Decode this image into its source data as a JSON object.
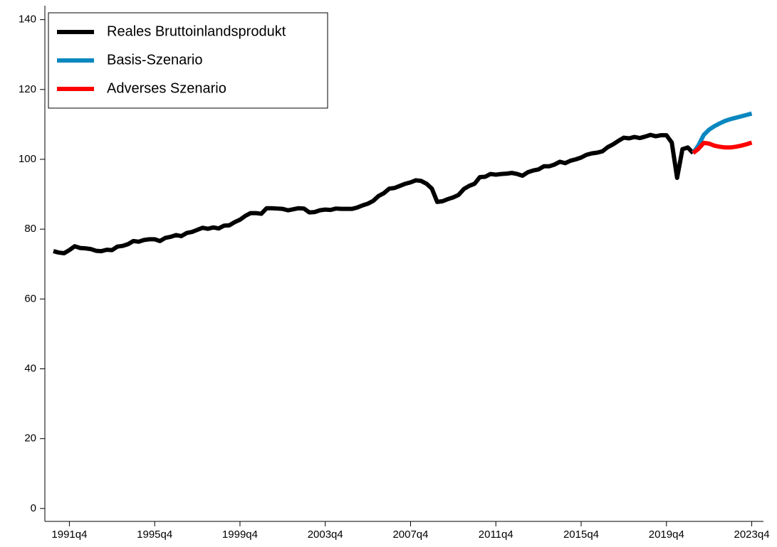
{
  "chart_data": {
    "type": "line",
    "xlim": [
      1990.6,
      2024.3
    ],
    "ylim": [
      -3.7,
      144
    ],
    "yticks": [
      0,
      20,
      40,
      60,
      80,
      100,
      120,
      140
    ],
    "xticks": [
      {
        "value": 1991.75,
        "label": "1991q4"
      },
      {
        "value": 1995.75,
        "label": "1995q4"
      },
      {
        "value": 1999.75,
        "label": "1999q4"
      },
      {
        "value": 2003.75,
        "label": "2003q4"
      },
      {
        "value": 2007.75,
        "label": "2007q4"
      },
      {
        "value": 2011.75,
        "label": "2011q4"
      },
      {
        "value": 2015.75,
        "label": "2015q4"
      },
      {
        "value": 2019.75,
        "label": "2019q4"
      },
      {
        "value": 2023.75,
        "label": "2023q4"
      }
    ],
    "grid": false,
    "legend": "upper-left",
    "series": [
      {
        "name": "Reales Bruttoinlandsprodukt",
        "color": "#000000",
        "x": [
          1991,
          1991.25,
          1991.5,
          1991.75,
          1992,
          1992.25,
          1992.5,
          1992.75,
          1993,
          1993.25,
          1993.5,
          1993.75,
          1994,
          1994.25,
          1994.5,
          1994.75,
          1995,
          1995.25,
          1995.5,
          1995.75,
          1996,
          1996.25,
          1996.5,
          1996.75,
          1997,
          1997.25,
          1997.5,
          1997.75,
          1998,
          1998.25,
          1998.5,
          1998.75,
          1999,
          1999.25,
          1999.5,
          1999.75,
          2000,
          2000.25,
          2000.5,
          2000.75,
          2001,
          2001.25,
          2001.5,
          2001.75,
          2002,
          2002.25,
          2002.5,
          2002.75,
          2003,
          2003.25,
          2003.5,
          2003.75,
          2004,
          2004.25,
          2004.5,
          2004.75,
          2005,
          2005.25,
          2005.5,
          2005.75,
          2006,
          2006.25,
          2006.5,
          2006.75,
          2007,
          2007.25,
          2007.5,
          2007.75,
          2008,
          2008.25,
          2008.5,
          2008.75,
          2009,
          2009.25,
          2009.5,
          2009.75,
          2010,
          2010.25,
          2010.5,
          2010.75,
          2011,
          2011.25,
          2011.5,
          2011.75,
          2012,
          2012.25,
          2012.5,
          2012.75,
          2013,
          2013.25,
          2013.5,
          2013.75,
          2014,
          2014.25,
          2014.5,
          2014.75,
          2015,
          2015.25,
          2015.5,
          2015.75,
          2016,
          2016.25,
          2016.5,
          2016.75,
          2017,
          2017.25,
          2017.5,
          2017.75,
          2018,
          2018.25,
          2018.5,
          2018.75,
          2019,
          2019.25,
          2019.5,
          2019.75,
          2020,
          2020.25,
          2020.5,
          2020.75,
          2021
        ],
        "values": [
          73.7,
          73.3,
          73.1,
          74.0,
          75.1,
          74.6,
          74.5,
          74.3,
          73.8,
          73.7,
          74.1,
          74.0,
          75.0,
          75.2,
          75.7,
          76.6,
          76.4,
          76.9,
          77.1,
          77.1,
          76.6,
          77.5,
          77.8,
          78.3,
          78.0,
          78.9,
          79.2,
          79.8,
          80.4,
          80.1,
          80.5,
          80.2,
          81.0,
          81.1,
          82.0,
          82.7,
          83.8,
          84.6,
          84.6,
          84.4,
          86.0,
          86.0,
          85.9,
          85.8,
          85.4,
          85.7,
          86.0,
          85.9,
          84.8,
          84.9,
          85.4,
          85.6,
          85.5,
          85.9,
          85.8,
          85.8,
          85.8,
          86.2,
          86.8,
          87.3,
          88.1,
          89.5,
          90.3,
          91.6,
          91.8,
          92.4,
          93.0,
          93.4,
          94.0,
          93.8,
          93.0,
          91.6,
          87.8,
          88.0,
          88.6,
          89.1,
          89.8,
          91.5,
          92.4,
          93.0,
          94.9,
          95.0,
          95.8,
          95.6,
          95.8,
          95.9,
          96.1,
          95.8,
          95.3,
          96.3,
          96.8,
          97.1,
          98.0,
          98.0,
          98.5,
          99.3,
          98.9,
          99.6,
          100.0,
          100.5,
          101.3,
          101.7,
          101.9,
          102.3,
          103.5,
          104.3,
          105.3,
          106.2,
          106.0,
          106.4,
          106.1,
          106.5,
          107.0,
          106.6,
          106.9,
          106.9,
          104.8,
          94.7,
          102.9,
          103.4,
          101.8
        ]
      },
      {
        "name": "Basis-Szenario",
        "color": "#0a87bf",
        "x": [
          2021,
          2021.25,
          2021.5,
          2021.75,
          2022,
          2022.25,
          2022.5,
          2022.75,
          2023,
          2023.25,
          2023.5,
          2023.75
        ],
        "values": [
          101.8,
          104.0,
          107.0,
          108.5,
          109.5,
          110.3,
          111.0,
          111.5,
          111.9,
          112.3,
          112.7,
          113.1
        ]
      },
      {
        "name": "Adverses Szenario",
        "color": "#ff0000",
        "x": [
          2021,
          2021.25,
          2021.5,
          2021.75,
          2022,
          2022.25,
          2022.5,
          2022.75,
          2023,
          2023.25,
          2023.5,
          2023.75
        ],
        "values": [
          101.8,
          103.0,
          104.7,
          104.5,
          103.9,
          103.6,
          103.4,
          103.4,
          103.6,
          103.9,
          104.3,
          104.8
        ]
      }
    ]
  }
}
